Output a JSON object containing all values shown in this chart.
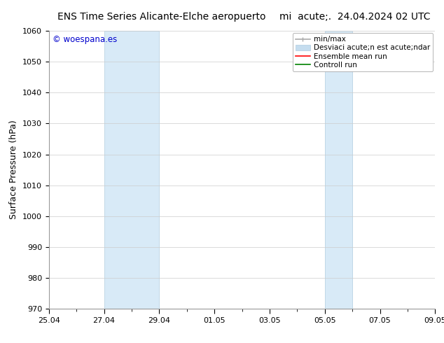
{
  "title_left": "ENS Time Series Alicante-Elche aeropuerto",
  "title_right": "mi  acute;.  24.04.2024 02 UTC",
  "ylabel": "Surface Pressure (hPa)",
  "ylim": [
    970,
    1060
  ],
  "yticks": [
    970,
    980,
    990,
    1000,
    1010,
    1020,
    1030,
    1040,
    1050,
    1060
  ],
  "xtick_labels": [
    "25.04",
    "27.04",
    "29.04",
    "01.05",
    "03.05",
    "05.05",
    "07.05",
    "09.05"
  ],
  "xtick_positions": [
    0,
    2,
    4,
    6,
    8,
    10,
    12,
    14
  ],
  "x_total": 14,
  "shaded_regions": [
    {
      "x_start": 2,
      "x_end": 4,
      "color": "#d8eaf7"
    },
    {
      "x_start": 10,
      "x_end": 11,
      "color": "#d8eaf7"
    }
  ],
  "shaded_border_color": "#b0cce0",
  "background_color": "#ffffff",
  "plot_bg_color": "#ffffff",
  "legend_labels": [
    "min/max",
    "Desviaci acute;n est acute;ndar",
    "Ensemble mean run",
    "Controll run"
  ],
  "legend_colors": [
    "#999999",
    "#c5ddef",
    "#ff0000",
    "#008000"
  ],
  "watermark": "© woespana.es",
  "watermark_color": "#0000cc",
  "grid_color": "#cccccc",
  "title_fontsize": 10,
  "tick_fontsize": 8,
  "ylabel_fontsize": 9,
  "legend_fontsize": 7.5
}
